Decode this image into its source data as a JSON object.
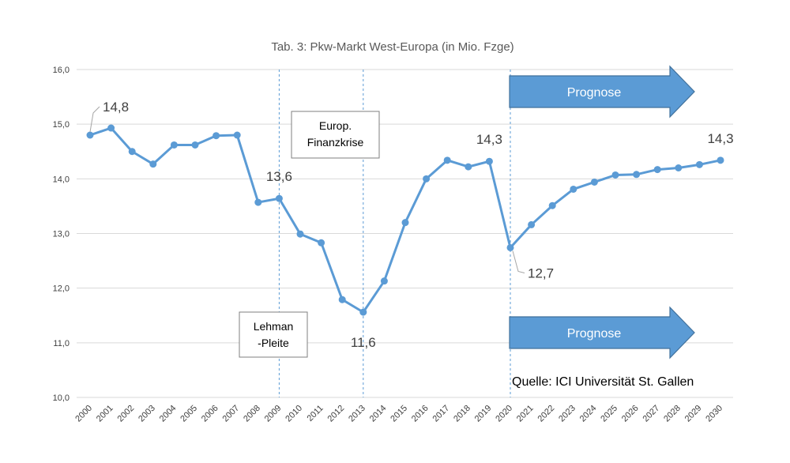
{
  "chart_data": {
    "type": "line",
    "title": "Tab. 3: Pkw-Markt West-Europa (in Mio. Fzge)",
    "xlabel": "",
    "ylabel": "",
    "ylim": [
      10.0,
      16.0
    ],
    "yticks": [
      "10,0",
      "11,0",
      "12,0",
      "13,0",
      "14,0",
      "15,0",
      "16,0"
    ],
    "grid": true,
    "categories": [
      "2000",
      "2001",
      "2002",
      "2003",
      "2004",
      "2005",
      "2006",
      "2007",
      "2008",
      "2009",
      "2010",
      "2011",
      "2012",
      "2013",
      "2014",
      "2015",
      "2016",
      "2017",
      "2018",
      "2019",
      "2020",
      "2021",
      "2022",
      "2023",
      "2024",
      "2025",
      "2026",
      "2027",
      "2028",
      "2029",
      "2030"
    ],
    "series": [
      {
        "values": [
          14.8,
          14.93,
          14.5,
          14.27,
          14.62,
          14.62,
          14.79,
          14.8,
          13.57,
          13.64,
          12.99,
          12.83,
          11.79,
          11.56,
          12.13,
          13.2,
          14.0,
          14.34,
          14.22,
          14.32,
          12.74,
          13.16,
          13.51,
          13.81,
          13.94,
          14.07,
          14.08,
          14.17,
          14.2,
          14.26,
          14.34
        ],
        "color": "#5b9bd5"
      }
    ],
    "data_labels": [
      {
        "index": 0,
        "text": "14,8"
      },
      {
        "index": 9,
        "text": "13,6"
      },
      {
        "index": 13,
        "text": "11,6"
      },
      {
        "index": 19,
        "text": "14,3"
      },
      {
        "index": 20,
        "text": "12,7"
      },
      {
        "index": 30,
        "text": "14,3"
      }
    ],
    "reference_lines": [
      {
        "category": "2009",
        "box_text": [
          "Lehman",
          "-Pleite"
        ]
      },
      {
        "category": "2013",
        "box_text": [
          "Europ.",
          "Finanzkrise"
        ]
      },
      {
        "category": "2020",
        "box_text": []
      }
    ],
    "arrows": [
      {
        "text": "Prognose",
        "color": "#5b9bd5"
      },
      {
        "text": "Prognose",
        "color": "#5b9bd5"
      }
    ],
    "source_note": "Quelle: ICI Universität St. Gallen",
    "colors": {
      "line": "#5b9bd5",
      "arrow": "#5b9bd5",
      "arrow_border": "#41719c",
      "grid": "#d9d9d9",
      "ref_line": "#5b9bd5"
    }
  }
}
